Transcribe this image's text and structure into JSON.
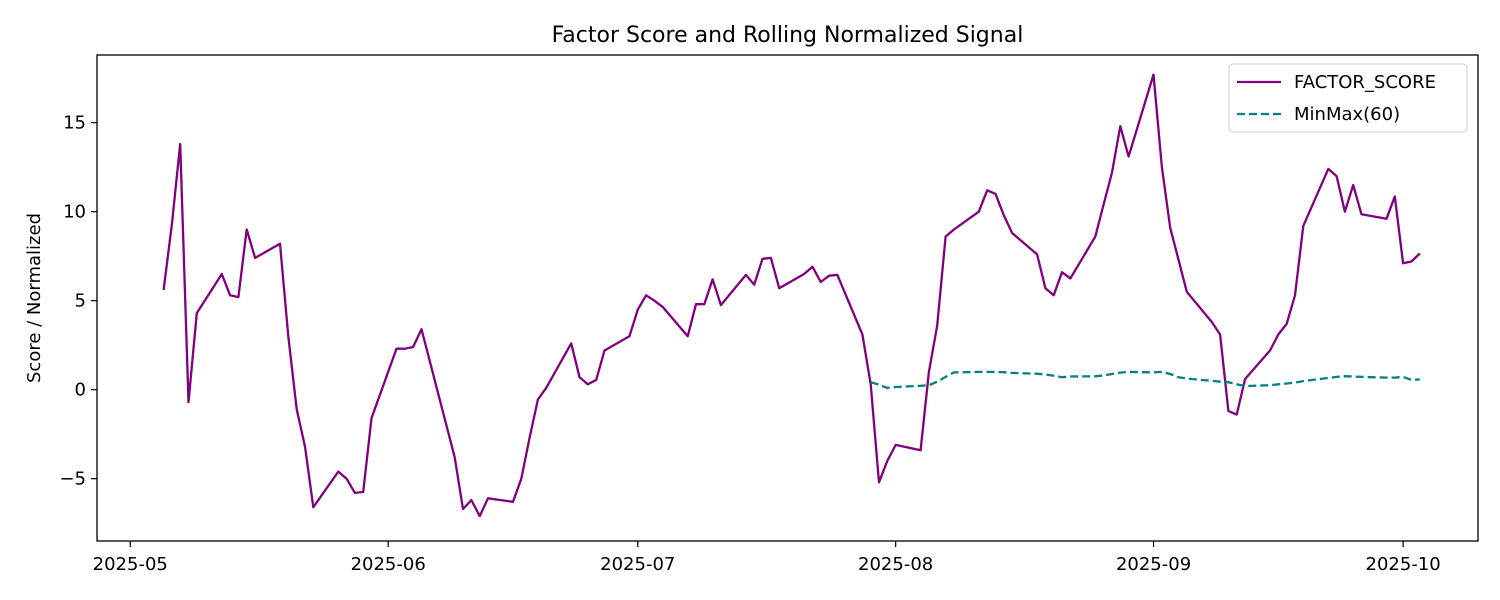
{
  "chart_data": {
    "type": "line",
    "title": "Factor Score and Rolling Normalized Signal",
    "xlabel": "",
    "ylabel": "Score / Normalized",
    "xlim": [
      "2025-04-27",
      "2025-10-10"
    ],
    "ylim": [
      -8.5,
      18.8
    ],
    "x_ticks": [
      "2025-05",
      "2025-06",
      "2025-07",
      "2025-08",
      "2025-09",
      "2025-10"
    ],
    "y_ticks": [
      -5,
      0,
      5,
      10,
      15
    ],
    "y_tick_labels": [
      "−5",
      "0",
      "5",
      "10",
      "15"
    ],
    "grid": false,
    "legend_position": "top-right",
    "series": [
      {
        "name": "FACTOR_SCORE",
        "color": "#800080",
        "style": "solid",
        "x": [
          "2025-05-05",
          "2025-05-06",
          "2025-05-07",
          "2025-05-08",
          "2025-05-09",
          "2025-05-12",
          "2025-05-13",
          "2025-05-14",
          "2025-05-15",
          "2025-05-16",
          "2025-05-19",
          "2025-05-20",
          "2025-05-21",
          "2025-05-22",
          "2025-05-23",
          "2025-05-26",
          "2025-05-27",
          "2025-05-28",
          "2025-05-29",
          "2025-05-30",
          "2025-06-02",
          "2025-06-03",
          "2025-06-04",
          "2025-06-05",
          "2025-06-06",
          "2025-06-09",
          "2025-06-10",
          "2025-06-11",
          "2025-06-12",
          "2025-06-13",
          "2025-06-16",
          "2025-06-17",
          "2025-06-18",
          "2025-06-19",
          "2025-06-20",
          "2025-06-23",
          "2025-06-24",
          "2025-06-25",
          "2025-06-26",
          "2025-06-27",
          "2025-06-30",
          "2025-07-01",
          "2025-07-02",
          "2025-07-03",
          "2025-07-04",
          "2025-07-07",
          "2025-07-08",
          "2025-07-09",
          "2025-07-10",
          "2025-07-11",
          "2025-07-14",
          "2025-07-15",
          "2025-07-16",
          "2025-07-17",
          "2025-07-18",
          "2025-07-21",
          "2025-07-22",
          "2025-07-23",
          "2025-07-24",
          "2025-07-25",
          "2025-07-28",
          "2025-07-29",
          "2025-07-30",
          "2025-07-31",
          "2025-08-01",
          "2025-08-04",
          "2025-08-05",
          "2025-08-06",
          "2025-08-07",
          "2025-08-08",
          "2025-08-11",
          "2025-08-12",
          "2025-08-13",
          "2025-08-14",
          "2025-08-15",
          "2025-08-18",
          "2025-08-19",
          "2025-08-20",
          "2025-08-21",
          "2025-08-22",
          "2025-08-25",
          "2025-08-26",
          "2025-08-27",
          "2025-08-28",
          "2025-08-29",
          "2025-09-01",
          "2025-09-02",
          "2025-09-03",
          "2025-09-04",
          "2025-09-05",
          "2025-09-08",
          "2025-09-09",
          "2025-09-10",
          "2025-09-11",
          "2025-09-12",
          "2025-09-15",
          "2025-09-16",
          "2025-09-17",
          "2025-09-18",
          "2025-09-19",
          "2025-09-22",
          "2025-09-23",
          "2025-09-24",
          "2025-09-25",
          "2025-09-26",
          "2025-09-29",
          "2025-09-30",
          "2025-10-01",
          "2025-10-02",
          "2025-10-03"
        ],
        "values": [
          5.6,
          9.3,
          13.8,
          -0.7,
          4.3,
          6.5,
          5.3,
          5.2,
          9.0,
          7.4,
          8.2,
          3.0,
          -1.1,
          -3.2,
          -6.6,
          -4.6,
          -5.0,
          -5.8,
          -5.75,
          -1.6,
          2.3,
          2.3,
          2.4,
          3.4,
          1.6,
          -3.8,
          -6.7,
          -6.2,
          -7.1,
          -6.1,
          -6.3,
          -5.0,
          -2.7,
          -0.55,
          0.1,
          2.6,
          0.7,
          0.3,
          0.55,
          2.2,
          3.0,
          4.5,
          5.3,
          5.0,
          4.65,
          3.0,
          4.8,
          4.8,
          6.2,
          4.75,
          6.45,
          5.9,
          7.35,
          7.4,
          5.7,
          6.5,
          6.9,
          6.05,
          6.4,
          6.45,
          3.1,
          0.3,
          -5.2,
          -4.0,
          -3.1,
          -3.4,
          1.0,
          3.6,
          8.6,
          9.0,
          10.0,
          11.2,
          11.0,
          9.8,
          8.8,
          7.6,
          5.7,
          5.3,
          6.6,
          6.25,
          8.6,
          10.4,
          12.2,
          14.8,
          13.1,
          17.7,
          12.5,
          9.1,
          7.3,
          5.5,
          3.8,
          3.1,
          -1.2,
          -1.4,
          0.6,
          2.2,
          3.1,
          3.7,
          5.3,
          9.2,
          12.4,
          12.0,
          10.0,
          11.5,
          9.85,
          9.6,
          10.85,
          7.1,
          7.2,
          7.65
        ]
      },
      {
        "name": "MinMax(60)",
        "color": "#008080",
        "style": "dashed",
        "x": [
          "2025-07-29",
          "2025-07-30",
          "2025-07-31",
          "2025-08-01",
          "2025-08-04",
          "2025-08-05",
          "2025-08-06",
          "2025-08-07",
          "2025-08-08",
          "2025-08-11",
          "2025-08-12",
          "2025-08-13",
          "2025-08-14",
          "2025-08-15",
          "2025-08-18",
          "2025-08-19",
          "2025-08-20",
          "2025-08-21",
          "2025-08-22",
          "2025-08-25",
          "2025-08-26",
          "2025-08-27",
          "2025-08-28",
          "2025-08-29",
          "2025-09-01",
          "2025-09-02",
          "2025-09-03",
          "2025-09-04",
          "2025-09-05",
          "2025-09-08",
          "2025-09-09",
          "2025-09-10",
          "2025-09-11",
          "2025-09-12",
          "2025-09-15",
          "2025-09-16",
          "2025-09-17",
          "2025-09-18",
          "2025-09-19",
          "2025-09-22",
          "2025-09-23",
          "2025-09-24",
          "2025-09-25",
          "2025-09-26",
          "2025-09-29",
          "2025-09-30",
          "2025-10-01",
          "2025-10-02",
          "2025-10-03"
        ],
        "values": [
          0.42,
          0.28,
          0.1,
          0.15,
          0.22,
          0.25,
          0.45,
          0.72,
          0.97,
          1.0,
          1.0,
          1.0,
          0.98,
          0.94,
          0.9,
          0.85,
          0.78,
          0.7,
          0.74,
          0.75,
          0.8,
          0.88,
          0.96,
          1.0,
          0.97,
          1.0,
          0.88,
          0.7,
          0.62,
          0.5,
          0.45,
          0.42,
          0.3,
          0.2,
          0.25,
          0.3,
          0.35,
          0.4,
          0.48,
          0.66,
          0.72,
          0.76,
          0.74,
          0.72,
          0.68,
          0.68,
          0.72,
          0.55,
          0.58
        ]
      }
    ]
  }
}
